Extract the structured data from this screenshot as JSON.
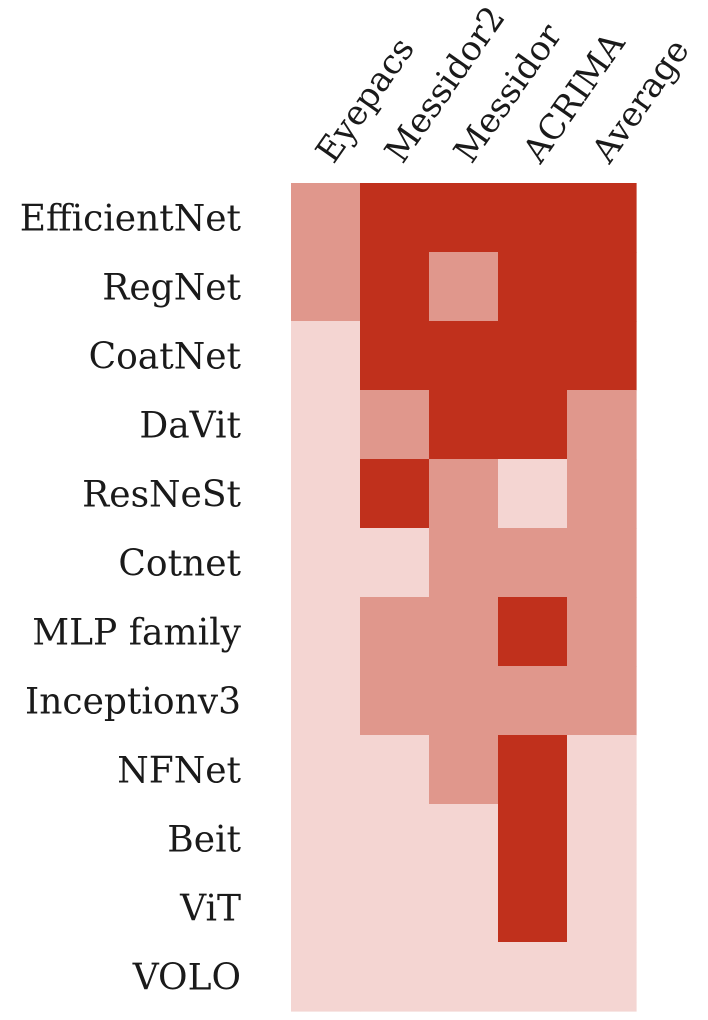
{
  "chart_data": {
    "type": "heatmap",
    "columns": [
      "Eyepacs",
      "Messidor2",
      "Messidor",
      "ACRIMA",
      "Average"
    ],
    "rows": [
      "EfficientNet",
      "RegNet",
      "CoatNet",
      "DaVit",
      "ResNeSt",
      "Cotnet",
      "MLP family",
      "Inceptionv3",
      "NFNet",
      "Beit",
      "ViT",
      "VOLO"
    ],
    "values": [
      [
        1,
        2,
        2,
        2,
        2
      ],
      [
        1,
        2,
        1,
        2,
        2
      ],
      [
        0,
        2,
        2,
        2,
        2
      ],
      [
        0,
        1,
        2,
        2,
        1
      ],
      [
        0,
        2,
        1,
        0,
        1
      ],
      [
        0,
        0,
        1,
        1,
        1
      ],
      [
        0,
        1,
        1,
        2,
        1
      ],
      [
        0,
        1,
        1,
        1,
        1
      ],
      [
        0,
        0,
        1,
        2,
        0
      ],
      [
        0,
        0,
        0,
        2,
        0
      ],
      [
        0,
        0,
        0,
        2,
        0
      ],
      [
        0,
        0,
        0,
        0,
        0
      ]
    ],
    "level_colors": [
      "#f4d5d2",
      "#e0978c",
      "#c0301c"
    ],
    "legend": "none",
    "grid": false
  }
}
